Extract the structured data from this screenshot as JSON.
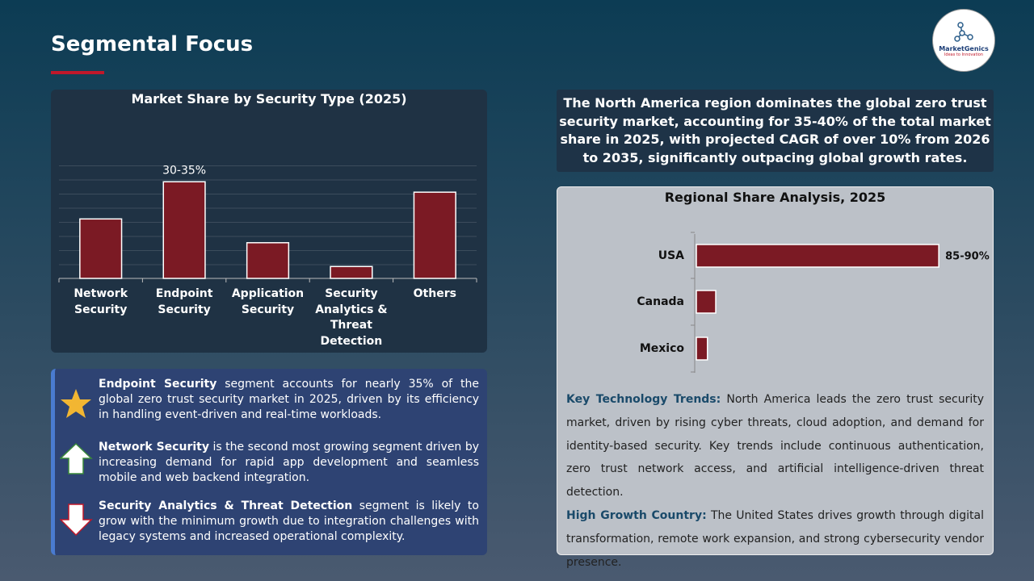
{
  "header": {
    "title": "Segmental Focus"
  },
  "logo": {
    "name": "MarketGenics",
    "tagline": "Ideas to Innovation"
  },
  "chart_data": [
    {
      "type": "bar",
      "title": "Market Share by Security Type (2025)",
      "categories": [
        "Network Security",
        "Endpoint Security",
        "Application Security",
        "Security Analytics & Threat Detection",
        "Others"
      ],
      "values": [
        20,
        32.5,
        12,
        4,
        29
      ],
      "value_labels": [
        null,
        "30-35%",
        null,
        null,
        null
      ],
      "color": "#7b1a24",
      "ylim": [
        0,
        38
      ]
    },
    {
      "type": "barh",
      "title": "Regional Share Analysis, 2025",
      "categories": [
        "USA",
        "Canada",
        "Mexico"
      ],
      "values": [
        87.5,
        7,
        4
      ],
      "value_labels": [
        "85-90%",
        null,
        null
      ],
      "color": "#7b1a24",
      "xlim": [
        0,
        100
      ]
    }
  ],
  "summary": "The North America region dominates the global zero trust security market, accounting for 35-40% of the total market share in 2025, with projected CAGR of over 10% from 2026 to 2035, significantly outpacing global growth rates.",
  "highlights": [
    {
      "bold": "Endpoint Security",
      "text": " segment accounts for nearly 35% of the global zero trust security market in 2025, driven by its efficiency in handling event-driven and real-time workloads."
    },
    {
      "bold": "Network Security",
      "text": " is the second most growing segment driven by increasing demand for rapid app development and seamless mobile and web backend integration."
    },
    {
      "bold": "Security Analytics & Threat Detection",
      "text": " segment is likely to grow with the minimum growth due to integration challenges with legacy systems and increased operational complexity."
    }
  ],
  "trends": [
    {
      "label": "Key Technology Trends:",
      "text": " North America leads the zero trust security market, driven by rising cyber threats, cloud adoption, and demand for identity-based security. Key trends include continuous authentication, zero trust network access, and artificial intelligence-driven threat detection."
    },
    {
      "label": "High Growth Country:",
      "text": " The United States drives growth through digital transformation, remote work expansion, and strong cybersecurity vendor presence."
    }
  ]
}
